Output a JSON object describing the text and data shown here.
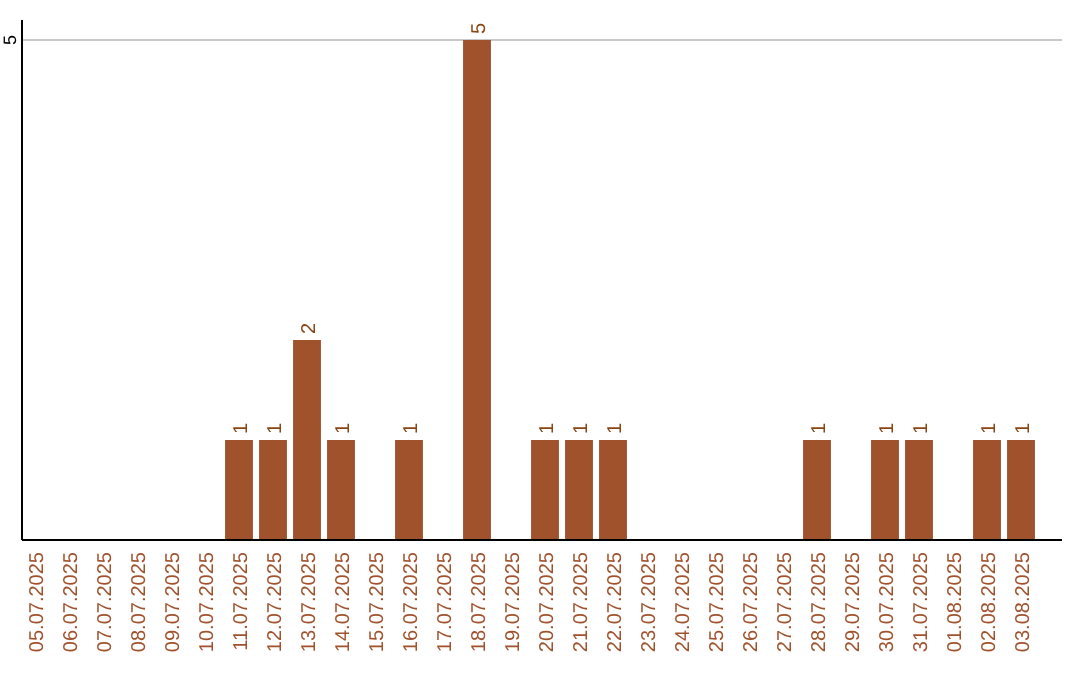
{
  "chart_data": {
    "type": "bar",
    "categories": [
      "05.07.2025",
      "06.07.2025",
      "07.07.2025",
      "08.07.2025",
      "09.07.2025",
      "10.07.2025",
      "11.07.2025",
      "12.07.2025",
      "13.07.2025",
      "14.07.2025",
      "15.07.2025",
      "16.07.2025",
      "17.07.2025",
      "18.07.2025",
      "19.07.2025",
      "20.07.2025",
      "21.07.2025",
      "22.07.2025",
      "23.07.2025",
      "24.07.2025",
      "25.07.2025",
      "26.07.2025",
      "27.07.2025",
      "28.07.2025",
      "29.07.2025",
      "30.07.2025",
      "31.07.2025",
      "01.08.2025",
      "02.08.2025",
      "03.08.2025"
    ],
    "values": [
      0,
      0,
      0,
      0,
      0,
      0,
      1,
      1,
      2,
      1,
      0,
      1,
      0,
      5,
      0,
      1,
      1,
      1,
      0,
      0,
      0,
      0,
      0,
      1,
      0,
      1,
      1,
      0,
      1,
      1
    ],
    "value_labels": [
      null,
      null,
      null,
      null,
      null,
      null,
      "1",
      "1",
      "2",
      "1",
      null,
      "1",
      null,
      "5",
      null,
      "1",
      "1",
      "1",
      null,
      null,
      null,
      null,
      null,
      "1",
      null,
      "1",
      "1",
      null,
      "1",
      "1"
    ],
    "color": "#a0522d",
    "ylim": [
      0,
      5.2
    ],
    "yticks": [
      5
    ],
    "grid": "y"
  }
}
